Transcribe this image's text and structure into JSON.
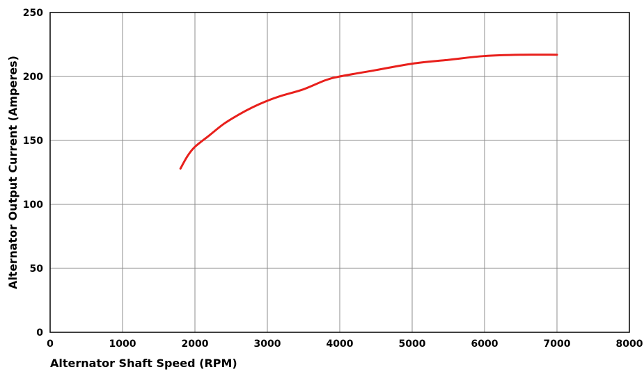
{
  "chart_data": {
    "type": "line",
    "title": "",
    "xlabel": "Alternator Shaft Speed (RPM)",
    "ylabel": "Alternator Output Current (Amperes)",
    "xlim": [
      0,
      8000
    ],
    "ylim": [
      0,
      250
    ],
    "x_ticks": [
      "0",
      "1000",
      "2000",
      "3000",
      "4000",
      "5000",
      "6000",
      "7000",
      "8000"
    ],
    "y_ticks": [
      "0",
      "50",
      "100",
      "150",
      "200",
      "250"
    ],
    "grid": true,
    "legend": "none",
    "series": [
      {
        "color": "#e8201c",
        "x": [
          1800,
          1900,
          2000,
          2200,
          2400,
          2600,
          2800,
          3000,
          3200,
          3500,
          3800,
          4000,
          4500,
          5000,
          5500,
          6000,
          6500,
          7000
        ],
        "y": [
          128,
          138,
          145,
          154,
          163,
          170,
          176,
          181,
          185,
          190,
          197,
          200,
          205,
          210,
          213,
          216,
          217,
          217
        ]
      }
    ]
  }
}
